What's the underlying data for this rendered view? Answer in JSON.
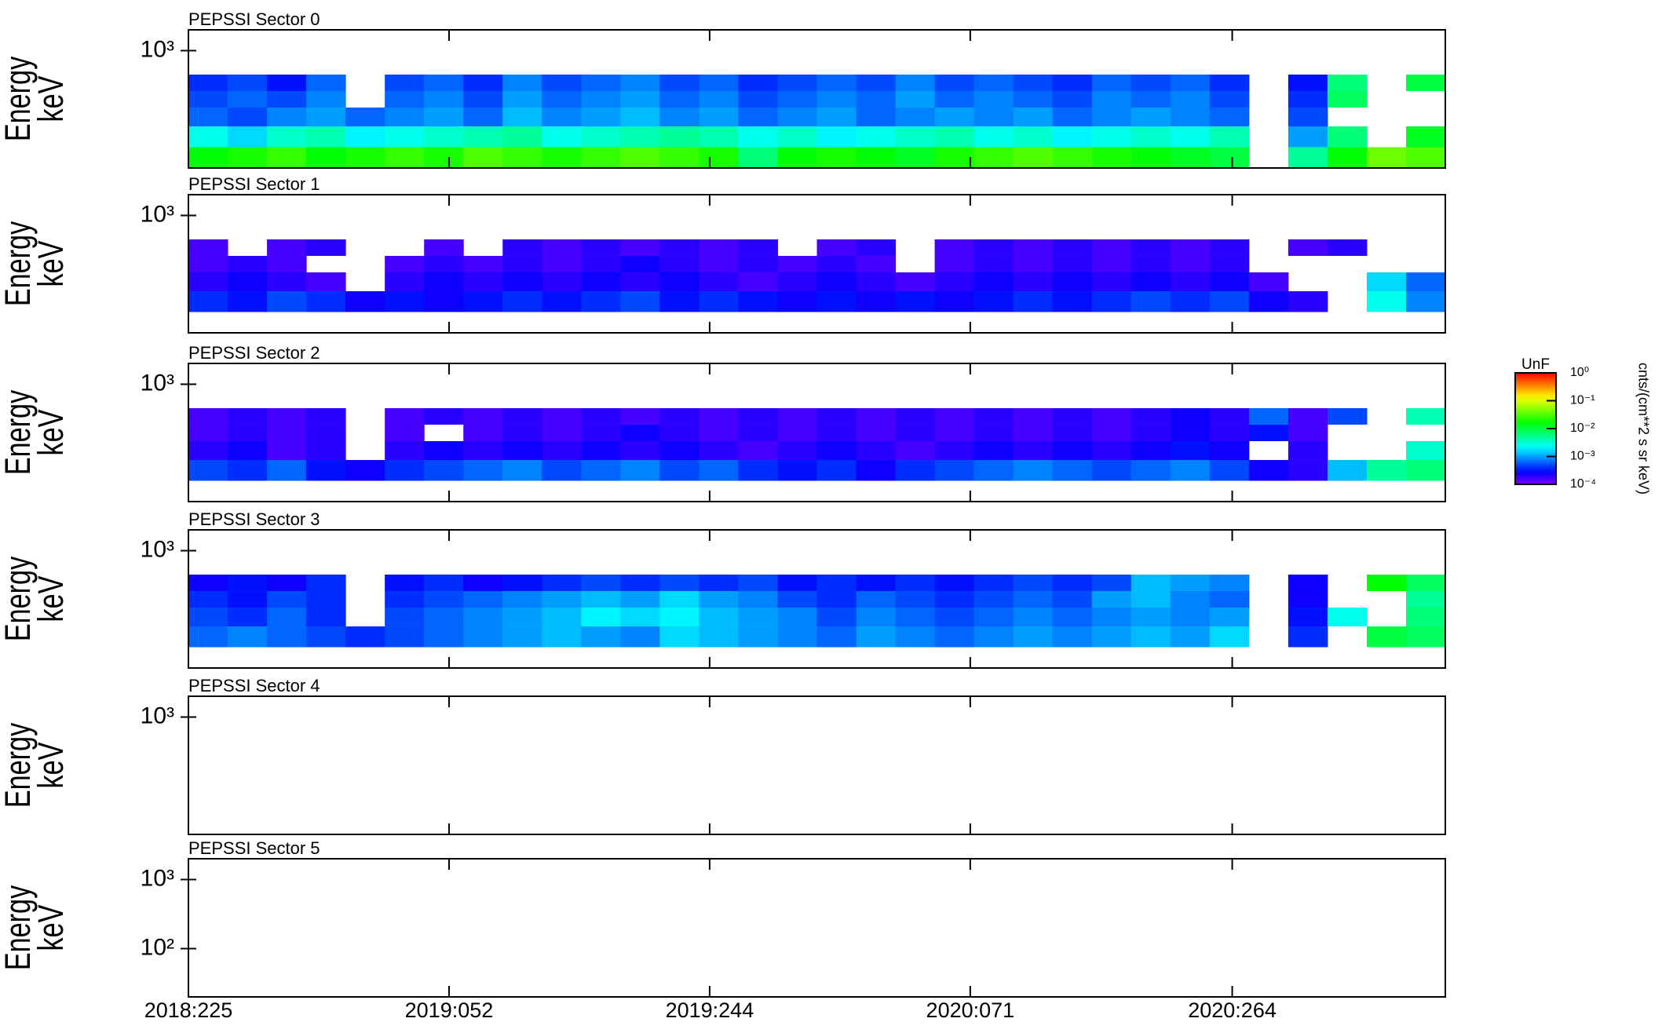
{
  "chart_data": [
    {
      "type": "heatmap",
      "title": "PEPSSI Sector 0",
      "ylabel": [
        "Energy",
        "keV"
      ],
      "log_y": true,
      "ylim": [
        20,
        2000
      ],
      "yticks": [
        {
          "value": 1000,
          "label": "10³"
        }
      ],
      "z": [
        [
          -1.8,
          -1.7,
          -1.6,
          -1.8,
          -1.7,
          -1.6,
          -1.7,
          -1.5,
          -1.6,
          -1.7,
          -1.6,
          -1.5,
          -1.6,
          -1.7,
          -2.2,
          -1.8,
          -1.7,
          -1.8,
          -1.9,
          -1.7,
          -1.6,
          -1.5,
          -1.6,
          -1.7,
          -1.8,
          -1.9,
          -2.0,
          null,
          -2.3,
          -1.8,
          -1.4,
          -1.5
        ],
        [
          -2.6,
          -2.8,
          -2.5,
          -2.4,
          -2.7,
          -2.6,
          -2.5,
          -2.4,
          -2.3,
          -2.6,
          -2.5,
          -2.4,
          -2.3,
          -2.4,
          -2.6,
          -2.5,
          -2.7,
          -2.6,
          -2.5,
          -2.4,
          -2.6,
          -2.5,
          -2.7,
          -2.6,
          -2.5,
          -2.6,
          -2.4,
          null,
          -3.0,
          -2.2,
          null,
          -1.9
        ],
        [
          -3.2,
          -3.3,
          -3.1,
          -3.0,
          -3.2,
          -3.1,
          -3.0,
          -3.2,
          -2.9,
          -3.1,
          -3.0,
          -2.9,
          -3.1,
          -3.0,
          -3.2,
          -3.1,
          -3.0,
          -3.2,
          -3.1,
          -3.0,
          -3.1,
          -3.0,
          -3.2,
          -3.1,
          -3.0,
          -3.1,
          -3.2,
          null,
          -3.3,
          null,
          null,
          null
        ],
        [
          -3.3,
          -3.2,
          -3.3,
          -3.1,
          null,
          -3.2,
          -3.1,
          -3.3,
          -3.0,
          -3.2,
          -3.1,
          -3.0,
          -3.2,
          -3.1,
          -3.3,
          -3.2,
          -3.1,
          -3.2,
          -3.0,
          -3.2,
          -3.1,
          -3.2,
          -3.3,
          -3.1,
          -3.2,
          -3.1,
          -3.3,
          null,
          -3.4,
          -2.1,
          null,
          null
        ],
        [
          -3.4,
          -3.3,
          -3.5,
          -3.2,
          null,
          -3.3,
          -3.2,
          -3.4,
          -3.1,
          -3.3,
          -3.2,
          -3.1,
          -3.3,
          -3.2,
          -3.4,
          -3.3,
          -3.2,
          -3.3,
          -3.1,
          -3.3,
          -3.2,
          -3.3,
          -3.4,
          -3.2,
          -3.3,
          -3.2,
          -3.4,
          null,
          -3.5,
          -2.2,
          null,
          -2.0
        ]
      ]
    },
    {
      "type": "heatmap",
      "title": "PEPSSI Sector 1",
      "ylabel": [
        "Energy",
        "keV"
      ],
      "log_y": true,
      "ylim": [
        20,
        2000
      ],
      "yticks": [
        {
          "value": 1000,
          "label": "10³"
        }
      ],
      "z": [
        [
          null,
          null,
          null,
          null,
          null,
          null,
          null,
          null,
          null,
          null,
          null,
          null,
          null,
          null,
          null,
          null,
          null,
          null,
          null,
          null,
          null,
          null,
          null,
          null,
          null,
          null,
          null,
          null,
          null,
          null,
          null,
          null
        ],
        [
          -3.4,
          -3.5,
          -3.3,
          -3.4,
          -3.6,
          -3.5,
          -3.6,
          -3.5,
          -3.4,
          -3.5,
          -3.4,
          -3.3,
          -3.5,
          -3.4,
          -3.5,
          -3.6,
          -3.5,
          -3.6,
          -3.5,
          -3.6,
          -3.5,
          -3.4,
          -3.5,
          -3.4,
          -3.3,
          -3.4,
          -3.3,
          -3.6,
          -3.7,
          null,
          -2.6,
          -3.1
        ],
        [
          -3.7,
          -3.6,
          -3.7,
          -3.8,
          null,
          -3.7,
          -3.6,
          -3.7,
          -3.6,
          -3.7,
          -3.6,
          -3.7,
          -3.6,
          -3.7,
          -3.8,
          -3.7,
          -3.6,
          -3.7,
          -3.8,
          -3.7,
          -3.6,
          -3.7,
          -3.6,
          -3.7,
          -3.6,
          -3.7,
          -3.6,
          -3.8,
          null,
          null,
          -2.8,
          -3.2
        ],
        [
          -3.8,
          -3.7,
          -3.8,
          null,
          null,
          -3.8,
          -3.7,
          -3.8,
          -3.7,
          -3.8,
          -3.7,
          -3.6,
          -3.7,
          -3.8,
          -3.7,
          -3.8,
          -3.7,
          -3.8,
          null,
          -3.8,
          -3.7,
          -3.8,
          -3.7,
          -3.8,
          -3.7,
          -3.8,
          -3.7,
          null,
          null,
          null,
          null,
          null
        ],
        [
          -3.8,
          null,
          -3.8,
          -3.7,
          null,
          null,
          -3.8,
          null,
          -3.7,
          -3.8,
          -3.7,
          -3.8,
          -3.7,
          -3.8,
          -3.7,
          null,
          -3.8,
          -3.7,
          null,
          -3.8,
          -3.7,
          -3.8,
          -3.7,
          -3.8,
          -3.7,
          -3.8,
          -3.7,
          null,
          -3.8,
          -3.7,
          null,
          null
        ]
      ]
    },
    {
      "type": "heatmap",
      "title": "PEPSSI Sector 2",
      "ylabel": [
        "Energy",
        "keV"
      ],
      "log_y": true,
      "ylim": [
        20,
        2000
      ],
      "yticks": [
        {
          "value": 1000,
          "label": "10³"
        }
      ],
      "z": [
        [
          null,
          null,
          null,
          null,
          null,
          null,
          null,
          null,
          null,
          null,
          null,
          null,
          null,
          null,
          null,
          null,
          null,
          null,
          null,
          null,
          null,
          null,
          null,
          null,
          null,
          null,
          null,
          null,
          null,
          null,
          null,
          null
        ],
        [
          -3.3,
          -3.4,
          -3.2,
          -3.5,
          -3.6,
          -3.4,
          -3.3,
          -3.2,
          -3.1,
          -3.3,
          -3.2,
          -3.1,
          -3.3,
          -3.2,
          -3.4,
          -3.5,
          -3.4,
          -3.6,
          -3.4,
          -3.3,
          -3.2,
          -3.1,
          -3.2,
          -3.3,
          -3.2,
          -3.1,
          -3.3,
          -3.6,
          -3.7,
          -2.9,
          -2.3,
          -2.2
        ],
        [
          -3.7,
          -3.6,
          -3.8,
          -3.7,
          null,
          -3.7,
          -3.6,
          -3.7,
          -3.6,
          -3.7,
          -3.6,
          -3.7,
          -3.6,
          -3.7,
          -3.8,
          -3.7,
          -3.6,
          -3.7,
          -3.8,
          -3.7,
          -3.6,
          -3.7,
          -3.6,
          -3.7,
          -3.6,
          -3.5,
          -3.6,
          null,
          -3.7,
          null,
          null,
          -2.5
        ],
        [
          -3.8,
          -3.7,
          -3.8,
          -3.7,
          null,
          -3.8,
          null,
          -3.8,
          -3.7,
          -3.8,
          -3.7,
          -3.6,
          -3.7,
          -3.8,
          -3.7,
          -3.8,
          -3.7,
          -3.8,
          -3.7,
          -3.8,
          -3.7,
          -3.8,
          -3.7,
          -3.8,
          -3.7,
          -3.6,
          -3.7,
          -3.5,
          -3.8,
          null,
          null,
          null
        ],
        [
          -3.8,
          -3.7,
          -3.8,
          -3.7,
          null,
          -3.8,
          -3.7,
          -3.8,
          -3.7,
          -3.8,
          -3.7,
          -3.8,
          -3.7,
          -3.8,
          -3.7,
          -3.8,
          -3.7,
          -3.8,
          -3.7,
          -3.8,
          -3.7,
          -3.8,
          -3.7,
          -3.8,
          -3.7,
          -3.6,
          -3.7,
          -3.2,
          -3.8,
          -3.3,
          null,
          -2.4
        ]
      ]
    },
    {
      "type": "heatmap",
      "title": "PEPSSI Sector 3",
      "ylabel": [
        "Energy",
        "keV"
      ],
      "log_y": true,
      "ylim": [
        20,
        2000
      ],
      "yticks": [
        {
          "value": 1000,
          "label": "10³"
        }
      ],
      "z": [
        [
          null,
          null,
          null,
          null,
          null,
          null,
          null,
          null,
          null,
          null,
          null,
          null,
          null,
          null,
          null,
          null,
          null,
          null,
          null,
          null,
          null,
          null,
          null,
          null,
          null,
          null,
          null,
          null,
          null,
          null,
          null,
          null
        ],
        [
          -3.2,
          -3.1,
          -3.2,
          -3.3,
          -3.4,
          -3.3,
          -3.2,
          -3.1,
          -3.0,
          -2.9,
          -3.0,
          -3.1,
          -2.8,
          -2.9,
          -3.0,
          -3.1,
          -3.2,
          -3.0,
          -3.1,
          -3.2,
          -3.1,
          -3.0,
          -3.1,
          -3.0,
          -2.9,
          -3.0,
          -2.8,
          null,
          -3.4,
          null,
          -2.0,
          -2.1
        ],
        [
          -3.3,
          -3.4,
          -3.2,
          -3.4,
          null,
          -3.3,
          -3.2,
          -3.1,
          -3.0,
          -2.9,
          -2.7,
          -2.8,
          -2.7,
          -2.9,
          -3.0,
          -3.1,
          -3.3,
          -3.1,
          -3.2,
          -3.3,
          -3.2,
          -3.1,
          -3.2,
          -3.1,
          -3.0,
          -3.1,
          -3.0,
          null,
          -3.5,
          -2.6,
          null,
          -2.2
        ],
        [
          -3.4,
          -3.5,
          -3.3,
          -3.4,
          null,
          -3.4,
          -3.3,
          -3.2,
          -3.1,
          -3.0,
          -2.9,
          -3.0,
          -2.8,
          -3.0,
          -3.1,
          -3.3,
          -3.4,
          -3.2,
          -3.3,
          -3.4,
          -3.3,
          -3.2,
          -3.3,
          -3.0,
          -2.9,
          -3.1,
          -3.2,
          null,
          -3.6,
          null,
          null,
          -2.3
        ],
        [
          -3.6,
          -3.5,
          -3.6,
          -3.4,
          null,
          -3.5,
          -3.4,
          -3.6,
          -3.5,
          -3.4,
          -3.3,
          -3.4,
          -3.3,
          -3.4,
          -3.3,
          -3.5,
          -3.4,
          -3.5,
          -3.4,
          -3.5,
          -3.4,
          -3.3,
          -3.4,
          -3.3,
          -2.9,
          -3.0,
          -3.1,
          null,
          -3.6,
          null,
          -1.8,
          -2.1
        ]
      ]
    },
    {
      "type": "heatmap",
      "title": "PEPSSI Sector 4",
      "ylabel": [
        "Energy",
        "keV"
      ],
      "log_y": true,
      "ylim": [
        20,
        2000
      ],
      "yticks": [
        {
          "value": 1000,
          "label": "10³"
        }
      ]
    },
    {
      "type": "heatmap",
      "title": "PEPSSI Sector 5",
      "ylabel": [
        "Energy",
        "keV"
      ],
      "log_y": true,
      "ylim": [
        20,
        2000
      ],
      "yticks": [
        {
          "value": 1000,
          "label": "10³"
        },
        {
          "value": 100,
          "label": "10²"
        }
      ]
    }
  ],
  "energy_edges": [
    20,
    40,
    80,
    150,
    260,
    450
  ],
  "time_axis": {
    "xlim": [
      "2018:225",
      "2021:055"
    ],
    "xticks": [
      "2018:225",
      "2019:052",
      "2019:244",
      "2020:071",
      "2020:264"
    ]
  },
  "colorbar": {
    "title": "UnF",
    "label": "cnts/(cm**2 s sr keV)",
    "colormap": "rainbow",
    "zlim": [
      -4,
      0
    ],
    "ticks": [
      {
        "value": 0,
        "label": "10⁰"
      },
      {
        "value": -1,
        "label": "10⁻¹"
      },
      {
        "value": -2,
        "label": "10⁻²"
      },
      {
        "value": -3,
        "label": "10⁻³"
      },
      {
        "value": -4,
        "label": "10⁻⁴"
      }
    ]
  }
}
